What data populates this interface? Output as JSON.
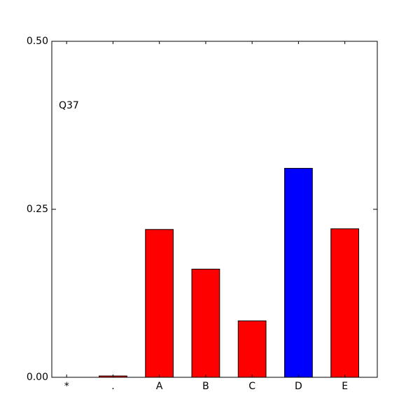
{
  "chart_data": {
    "type": "bar",
    "annotation": "Q37",
    "categories": [
      "*",
      ".",
      "A",
      "B",
      "C",
      "D",
      "E"
    ],
    "values": [
      0,
      0.002,
      0.22,
      0.161,
      0.084,
      0.311,
      0.221
    ],
    "colors": [
      "#ff0000",
      "#ff0000",
      "#ff0000",
      "#ff0000",
      "#ff0000",
      "#0000ff",
      "#ff0000"
    ],
    "ylim": [
      0,
      0.5
    ],
    "yticks": [
      {
        "value": 0,
        "label": "0.00"
      },
      {
        "value": 0.25,
        "label": "0.25"
      },
      {
        "value": 0.5,
        "label": "0.50"
      }
    ]
  }
}
